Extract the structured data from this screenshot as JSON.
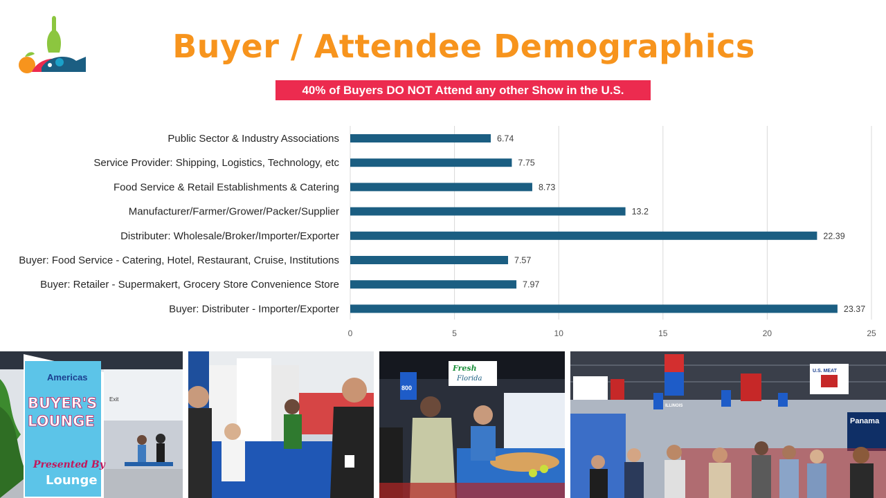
{
  "header": {
    "title": "Buyer / Attendee Demographics",
    "banner": "40% of Buyers DO NOT Attend any other Show in the U.S."
  },
  "colors": {
    "title": "#f7941d",
    "banner_bg": "#ec2b4f",
    "bar": "#1b5e82",
    "grid": "#d9d9d9"
  },
  "photos": {
    "lounge_sign_heading": "Americas",
    "lounge_sign_main": [
      "BUYER'S",
      "LOUNGE"
    ],
    "lounge_sign_presented": "Presented By",
    "lounge_sign_brand": "Lounge",
    "lounge_exit": "Exit",
    "booth_sign_fresh": [
      "Fresh",
      "Florida"
    ],
    "booth_number": "800",
    "booth_banner_illinois": "ILLINOIS",
    "booth_banner_us_meat": "U.S. MEAT",
    "booth_banner_panama": "Panama"
  },
  "chart_data": {
    "type": "bar",
    "orientation": "horizontal",
    "categories": [
      "Public Sector & Industry Associations",
      "Service Provider: Shipping, Logistics, Technology, etc",
      "Food Service & Retail Establishments & Catering",
      "Manufacturer/Farmer/Grower/Packer/Supplier",
      "Distributer: Wholesale/Broker/Importer/Exporter",
      "Buyer: Food Service - Catering, Hotel, Restaurant, Cruise, Institutions",
      "Buyer: Retailer - Supermakert, Grocery Store Convenience Store",
      "Buyer: Distributer - Importer/Exporter"
    ],
    "values": [
      6.74,
      7.75,
      8.73,
      13.2,
      22.39,
      7.57,
      7.97,
      23.37
    ],
    "value_labels": [
      "6.74",
      "7.75",
      "8.73",
      "13.2",
      "22.39",
      "7.57",
      "7.97",
      "23.37"
    ],
    "xticks": [
      "0",
      "5",
      "10",
      "15",
      "20",
      "25"
    ],
    "xlim": [
      0,
      25
    ],
    "grid": true,
    "legend": "none"
  }
}
